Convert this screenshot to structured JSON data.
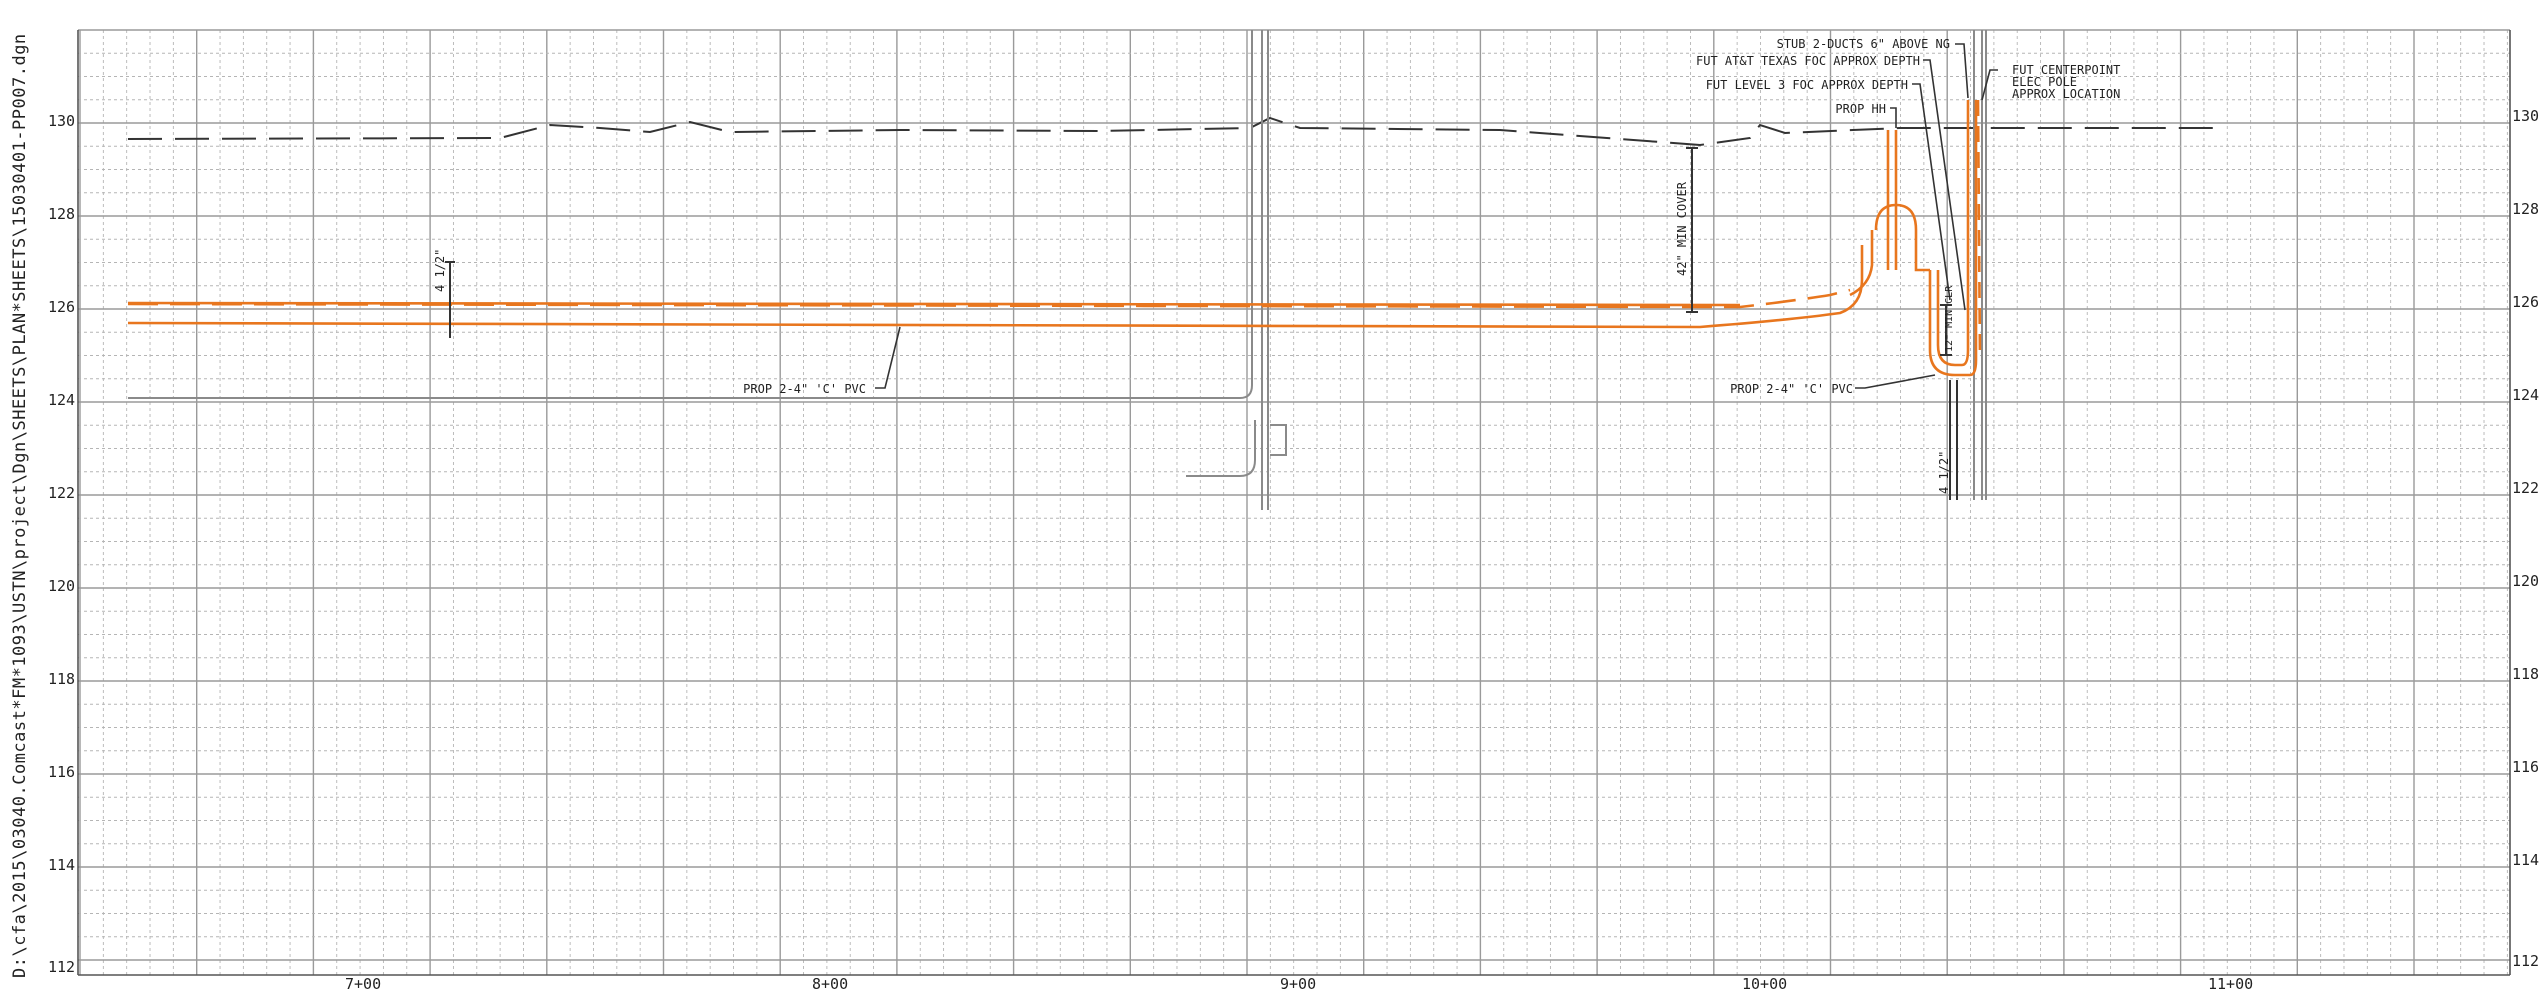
{
  "sheet": {
    "file_path": "D:\\cfa\\2015\\03040.Comcast*FM*1093\\USTN\\project\\Dgn\\SHEETS\\PLAN*SHEETS\\15030401-PP007.dgn",
    "elevations": [
      "130",
      "128",
      "126",
      "124",
      "122",
      "120",
      "118",
      "116",
      "114",
      "112"
    ],
    "stations": [
      "7+00",
      "8+00",
      "9+00",
      "10+00",
      "11+00"
    ]
  },
  "annotations": {
    "stub": "STUB 2-DUCTS 6\" ABOVE NG",
    "fut_att": "FUT AT&T TEXAS FOC APPROX DEPTH",
    "fut_level3": "FUT LEVEL 3 FOC APPROX DEPTH",
    "prop_hh": "PROP HH",
    "centerpoint_1": "FUT CENTERPOINT",
    "centerpoint_2": "ELEC POLE",
    "centerpoint_3": "APPROX LOCATION",
    "min_cover": "42\" MIN COVER",
    "dim_left": "4 1/2\"",
    "dim_right": "4 1/2\"",
    "min_clr": "12\" MIN CLR",
    "prop_pvc_left": "PROP 2-4\" 'C' PVC",
    "prop_pvc_right": "PROP 2-4\" 'C' PVC"
  },
  "colors": {
    "grid": "#9a9a9a",
    "grid_minor": "#b5b5b5",
    "ink": "#333333",
    "conduit": "#e8761e"
  }
}
